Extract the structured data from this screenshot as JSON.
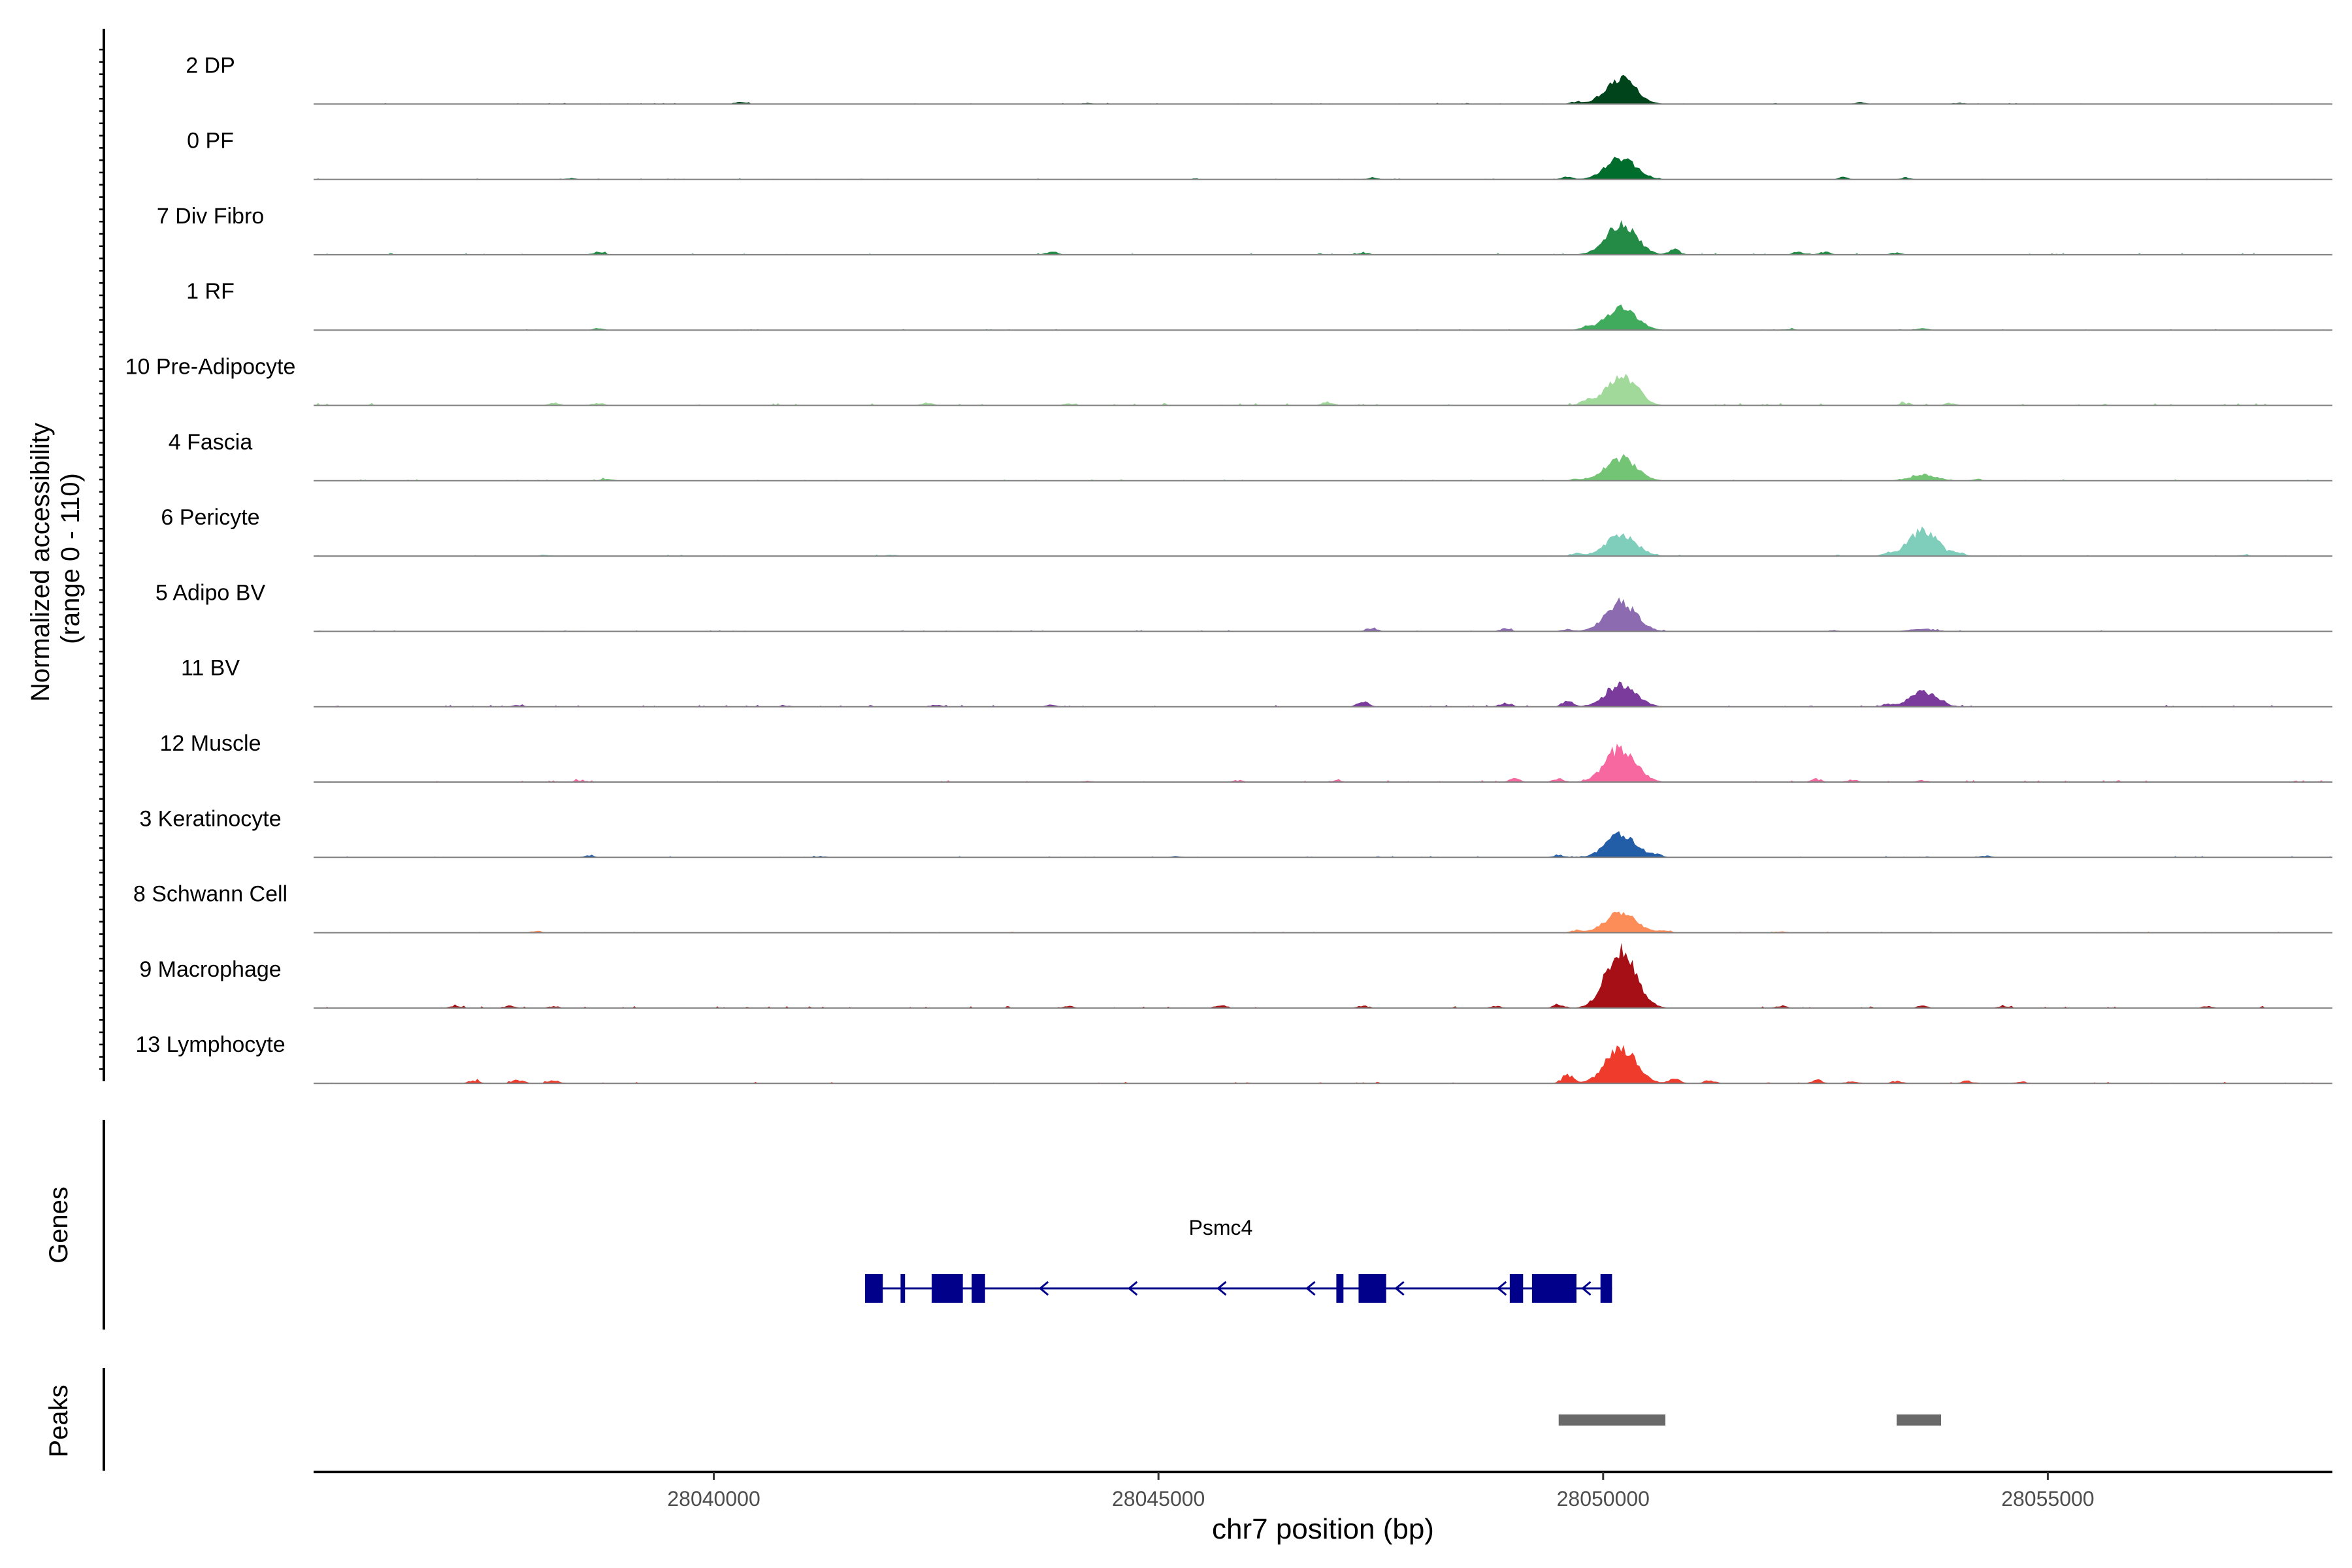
{
  "chart_data": {
    "type": "area",
    "subtype": "genome-coverage-track",
    "chromosome": "chr7",
    "xlim": [
      28035500,
      28058200
    ],
    "xlabel": "chr7 position (bp)",
    "x_ticks": [
      28040000,
      28045000,
      28050000,
      28055000
    ],
    "x_tick_labels": [
      "28040000",
      "28045000",
      "28050000",
      "28055000"
    ],
    "coverage_ylabel_line1": "Normalized accessibility",
    "coverage_ylabel_line2": "(range 0 - 110)",
    "ylim": [
      0,
      110
    ],
    "genes_label": "Genes",
    "peaks_label": "Peaks",
    "tracks": [
      {
        "name": "2 DP",
        "color": "#00441b",
        "main_peak": 41,
        "second_peak": 0,
        "noise": 0.9,
        "seed": 3,
        "extra_bumps": [
          [
            28049700,
            4
          ],
          [
            28040300,
            3
          ],
          [
            28052900,
            3
          ],
          [
            28044200,
            2
          ],
          [
            28054000,
            2
          ]
        ]
      },
      {
        "name": "0 PF",
        "color": "#006d2c",
        "main_peak": 36,
        "second_peak": 0,
        "noise": 0.8,
        "seed": 7,
        "extra_bumps": [
          [
            28049600,
            4
          ],
          [
            28047400,
            3
          ],
          [
            28052700,
            3
          ],
          [
            28053400,
            3
          ],
          [
            28038400,
            2
          ]
        ]
      },
      {
        "name": "7 Div Fibro",
        "color": "#238b45",
        "main_peak": 50,
        "second_peak": 0,
        "noise": 1.2,
        "seed": 11,
        "extra_bumps": [
          [
            28038700,
            5
          ],
          [
            28043800,
            5
          ],
          [
            28050800,
            9
          ],
          [
            28052200,
            5
          ],
          [
            28052500,
            5
          ],
          [
            28047300,
            4
          ],
          [
            28053300,
            4
          ]
        ]
      },
      {
        "name": "1 RF",
        "color": "#41ab5d",
        "main_peak": 36,
        "second_peak": 0,
        "noise": 0.8,
        "seed": 13,
        "extra_bumps": [
          [
            28038700,
            3
          ],
          [
            28049800,
            4
          ],
          [
            28053600,
            3
          ],
          [
            28052100,
            2
          ]
        ]
      },
      {
        "name": "10 Pre-Adipocyte",
        "color": "#a1d99b",
        "main_peak": 46,
        "second_peak": 0,
        "noise": 2.0,
        "seed": 17,
        "extra_bumps": [
          [
            28038200,
            4
          ],
          [
            28038700,
            4
          ],
          [
            28046900,
            6
          ],
          [
            28049800,
            8
          ],
          [
            28050400,
            6
          ],
          [
            28053400,
            4
          ],
          [
            28053900,
            4
          ],
          [
            28042400,
            4
          ],
          [
            28044000,
            3
          ]
        ]
      },
      {
        "name": "4 Fascia",
        "color": "#74c476",
        "main_peak": 37,
        "second_peak": 10,
        "noise": 1.0,
        "seed": 19,
        "extra_bumps": [
          [
            28038800,
            4
          ],
          [
            28049700,
            3
          ],
          [
            28054200,
            3
          ]
        ]
      },
      {
        "name": "6 Pericyte",
        "color": "#7fcdbb",
        "main_peak": 36,
        "second_peak": 44,
        "noise": 1.1,
        "seed": 23,
        "extra_bumps": [
          [
            28049700,
            4
          ],
          [
            28053200,
            5
          ],
          [
            28054000,
            5
          ],
          [
            28038100,
            2
          ],
          [
            28042000,
            2
          ],
          [
            28057200,
            2
          ]
        ]
      },
      {
        "name": "5 Adipo BV",
        "color": "#8c6bb1",
        "main_peak": 48,
        "second_peak": 4,
        "noise": 1.0,
        "seed": 29,
        "extra_bumps": [
          [
            28047400,
            6
          ],
          [
            28048900,
            5
          ],
          [
            28049600,
            4
          ],
          [
            28052600,
            2
          ]
        ]
      },
      {
        "name": "11 BV",
        "color": "#7a3b9c",
        "main_peak": 36,
        "second_peak": 24,
        "noise": 1.4,
        "seed": 31,
        "extra_bumps": [
          [
            28047300,
            8
          ],
          [
            28048900,
            7
          ],
          [
            28049600,
            9
          ],
          [
            28042500,
            3
          ],
          [
            28043800,
            3
          ],
          [
            28053200,
            4
          ],
          [
            28037800,
            3
          ],
          [
            28040800,
            2
          ]
        ]
      },
      {
        "name": "12 Muscle",
        "color": "#f768a1",
        "main_peak": 55,
        "second_peak": 0,
        "noise": 1.5,
        "seed": 37,
        "extra_bumps": [
          [
            28049000,
            6
          ],
          [
            28049500,
            5
          ],
          [
            28052400,
            5
          ],
          [
            28052800,
            4
          ],
          [
            28038500,
            3
          ],
          [
            28045900,
            3
          ],
          [
            28047000,
            3
          ],
          [
            28053600,
            3
          ],
          [
            28044200,
            2
          ]
        ]
      },
      {
        "name": "3 Keratinocyte",
        "color": "#225ea8",
        "main_peak": 37,
        "second_peak": 0,
        "noise": 1.0,
        "seed": 41,
        "extra_bumps": [
          [
            28038600,
            3
          ],
          [
            28049500,
            4
          ],
          [
            28050600,
            4
          ],
          [
            28054300,
            3
          ],
          [
            28041200,
            2
          ],
          [
            28045200,
            2
          ]
        ]
      },
      {
        "name": "8 Schwann Cell",
        "color": "#fc8d59",
        "main_peak": 34,
        "second_peak": 0,
        "noise": 0.8,
        "seed": 43,
        "extra_bumps": [
          [
            28038000,
            3
          ],
          [
            28049700,
            4
          ],
          [
            28050700,
            4
          ],
          [
            28052000,
            2
          ]
        ]
      },
      {
        "name": "9 Macrophage",
        "color": "#a50f15",
        "main_peak": 90,
        "second_peak": 0,
        "noise": 1.5,
        "seed": 47,
        "extra_bumps": [
          [
            28037100,
            4
          ],
          [
            28037700,
            4
          ],
          [
            28038200,
            3
          ],
          [
            28045700,
            5
          ],
          [
            28047300,
            4
          ],
          [
            28049500,
            6
          ],
          [
            28052000,
            4
          ],
          [
            28053600,
            4
          ],
          [
            28054500,
            3
          ],
          [
            28056800,
            3
          ],
          [
            28044000,
            3
          ],
          [
            28048800,
            3
          ]
        ]
      },
      {
        "name": "13 Lymphocyte",
        "color": "#ef3b2c",
        "main_peak": 58,
        "second_peak": 0,
        "noise": 1.3,
        "seed": 53,
        "extra_bumps": [
          [
            28037300,
            5
          ],
          [
            28037800,
            6
          ],
          [
            28038200,
            5
          ],
          [
            28049600,
            14
          ],
          [
            28050800,
            8
          ],
          [
            28051200,
            5
          ],
          [
            28052400,
            6
          ],
          [
            28052800,
            4
          ],
          [
            28053300,
            4
          ],
          [
            28054100,
            4
          ],
          [
            28054700,
            3
          ]
        ]
      }
    ],
    "main_peak_center": 28050200,
    "second_peak_center": 28053600,
    "gene": {
      "name": "Psmc4",
      "strand": "-",
      "start": 28041700,
      "end": 28050100,
      "color": "#00008b",
      "exons": [
        [
          28041700,
          28041900
        ],
        [
          28042100,
          28042150
        ],
        [
          28042450,
          28042800
        ],
        [
          28042900,
          28043050
        ],
        [
          28047000,
          28047080
        ],
        [
          28047250,
          28047560
        ],
        [
          28048950,
          28049100
        ],
        [
          28049200,
          28049700
        ],
        [
          28049970,
          28050100
        ]
      ],
      "intron_arrows": [
        28043700,
        28044700,
        28045700,
        28046700,
        28047700,
        28048850,
        28049800
      ]
    },
    "peaks": {
      "color": "#696969",
      "regions": [
        [
          28049500,
          28050700
        ],
        [
          28053300,
          28053800
        ]
      ]
    }
  }
}
